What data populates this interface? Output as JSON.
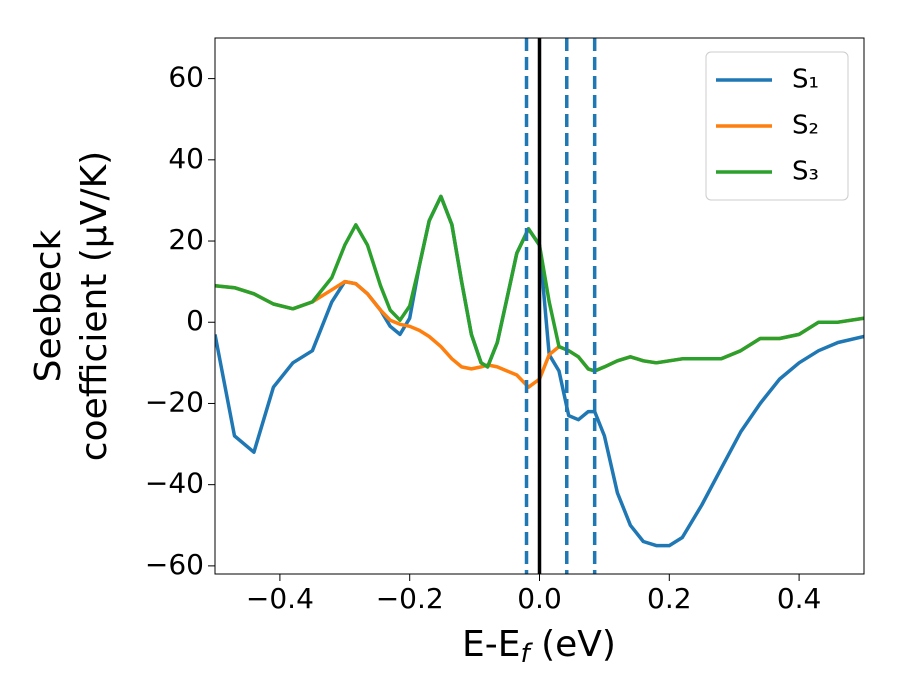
{
  "chart_data": {
    "type": "line",
    "xlabel": [
      "E-E",
      "f",
      " (eV)"
    ],
    "ylabel": [
      "Seebeck",
      "coefficient  (μV/K)"
    ],
    "x": [
      -0.5,
      -0.47,
      -0.44,
      -0.41,
      -0.38,
      -0.35,
      -0.32,
      -0.3,
      -0.283,
      -0.265,
      -0.245,
      -0.23,
      -0.215,
      -0.2,
      -0.185,
      -0.17,
      -0.152,
      -0.135,
      -0.12,
      -0.105,
      -0.09,
      -0.08,
      -0.065,
      -0.05,
      -0.035,
      -0.017,
      0,
      0.015,
      0.03,
      0.045,
      0.06,
      0.075,
      0.085,
      0.1,
      0.12,
      0.14,
      0.16,
      0.18,
      0.2,
      0.22,
      0.25,
      0.28,
      0.31,
      0.34,
      0.37,
      0.4,
      0.43,
      0.46,
      0.5
    ],
    "series": [
      {
        "name": "S₁",
        "color": "#1f77b4",
        "values": [
          -3,
          -28,
          -32,
          -16,
          -10,
          -7,
          5,
          10,
          9.5,
          7,
          3,
          -1,
          -3,
          1,
          14,
          25,
          31,
          24,
          10,
          -3,
          -10,
          -11,
          -5,
          6,
          17,
          23,
          19,
          -8,
          -12,
          -23,
          -24,
          -22,
          -22,
          -28,
          -42,
          -50,
          -54,
          -55,
          -55,
          -53,
          -45,
          -36,
          -27,
          -20,
          -14,
          -10,
          -7,
          -5,
          -3.5
        ]
      },
      {
        "name": "S₂",
        "color": "#ff7f0e",
        "values": [
          9,
          8.5,
          7,
          4.5,
          3.3,
          5,
          8,
          10,
          9.5,
          7,
          3,
          0.5,
          -0.5,
          -1,
          -2,
          -3.5,
          -6,
          -9,
          -11,
          -11.5,
          -11,
          -10.5,
          -11,
          -12,
          -13,
          -16,
          -14,
          -8,
          -6,
          -7,
          -8.5,
          -11.5,
          -12,
          -11,
          -9.5,
          -8.5,
          -9.5,
          -10,
          -9.5,
          -9,
          -9,
          -9,
          -7,
          -4,
          -4,
          -3,
          0,
          0,
          1
        ]
      },
      {
        "name": "S₃",
        "color": "#2ca02c",
        "values": [
          9,
          8.5,
          7,
          4.5,
          3.3,
          5,
          11,
          19,
          24,
          19,
          9,
          3,
          0.5,
          4,
          14,
          25,
          31,
          24,
          10,
          -3,
          -10,
          -11,
          -5,
          6,
          17,
          23,
          19,
          5,
          -6,
          -7,
          -8.5,
          -11.5,
          -12,
          -11,
          -9.5,
          -8.5,
          -9.5,
          -10,
          -9.5,
          -9,
          -9,
          -9,
          -7,
          -4,
          -4,
          -3,
          0,
          0,
          1
        ]
      }
    ],
    "vlines": [
      {
        "x": -0.02,
        "color": "#1f77b4",
        "style": "dashed"
      },
      {
        "x": 0,
        "color": "#000000",
        "style": "solid"
      },
      {
        "x": 0.042,
        "color": "#1f77b4",
        "style": "dashed"
      },
      {
        "x": 0.085,
        "color": "#1f77b4",
        "style": "dashed"
      }
    ],
    "xlim": [
      -0.5,
      0.5
    ],
    "xticks": [
      {
        "value": -0.4,
        "label": "−0.4"
      },
      {
        "value": -0.2,
        "label": "−0.2"
      },
      {
        "value": 0,
        "label": "0.0"
      },
      0.2,
      0.4
    ],
    "ylim": [
      -62,
      70
    ],
    "yticks": [
      {
        "value": -60,
        "label": "−60"
      },
      {
        "value": -40,
        "label": "−40"
      },
      {
        "value": -20,
        "label": "−20"
      },
      0,
      20,
      40,
      60
    ],
    "legend": "upper right",
    "grid": false
  }
}
